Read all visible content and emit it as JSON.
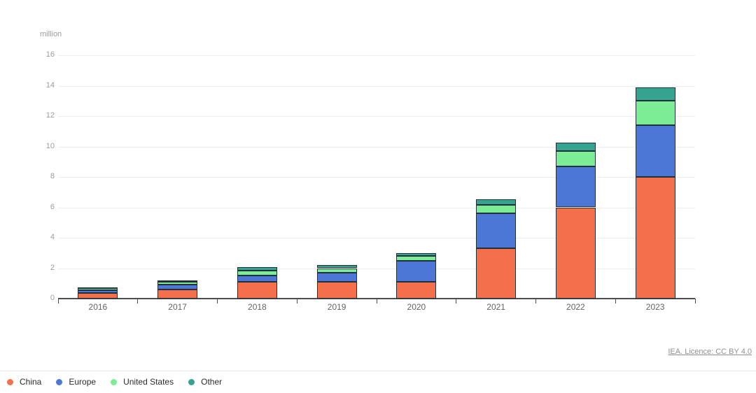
{
  "meta": {
    "source_label": "IEA. Licence: CC BY 4.0"
  },
  "chart_data": {
    "type": "bar",
    "stacked": true,
    "ylabel": "million",
    "categories": [
      "2016",
      "2017",
      "2018",
      "2019",
      "2020",
      "2021",
      "2022",
      "2023"
    ],
    "series": [
      {
        "name": "China",
        "color": "#f3704a",
        "values": [
          0.35,
          0.6,
          1.1,
          1.1,
          1.1,
          3.3,
          6.0,
          8.0
        ]
      },
      {
        "name": "Europe",
        "color": "#4c77d6",
        "values": [
          0.2,
          0.3,
          0.4,
          0.6,
          1.4,
          2.3,
          2.7,
          3.4
        ]
      },
      {
        "name": "United States",
        "color": "#7cec95",
        "values": [
          0.15,
          0.2,
          0.35,
          0.3,
          0.3,
          0.55,
          1.0,
          1.6
        ]
      },
      {
        "name": "Other",
        "color": "#35a38f",
        "values": [
          0.05,
          0.1,
          0.2,
          0.2,
          0.2,
          0.4,
          0.55,
          0.9
        ]
      }
    ],
    "totals": [
      0.75,
      1.2,
      2.05,
      2.2,
      3.0,
      6.55,
      10.25,
      13.9
    ],
    "ylim": [
      0,
      16
    ],
    "y_ticks": [
      0,
      2,
      4,
      6,
      8,
      10,
      12,
      14,
      16
    ],
    "grid": true,
    "legend_position": "bottom-left",
    "style": {
      "segment_border": "#22303c",
      "gridline": "#ededed",
      "axis": "#4d4d4d"
    }
  }
}
